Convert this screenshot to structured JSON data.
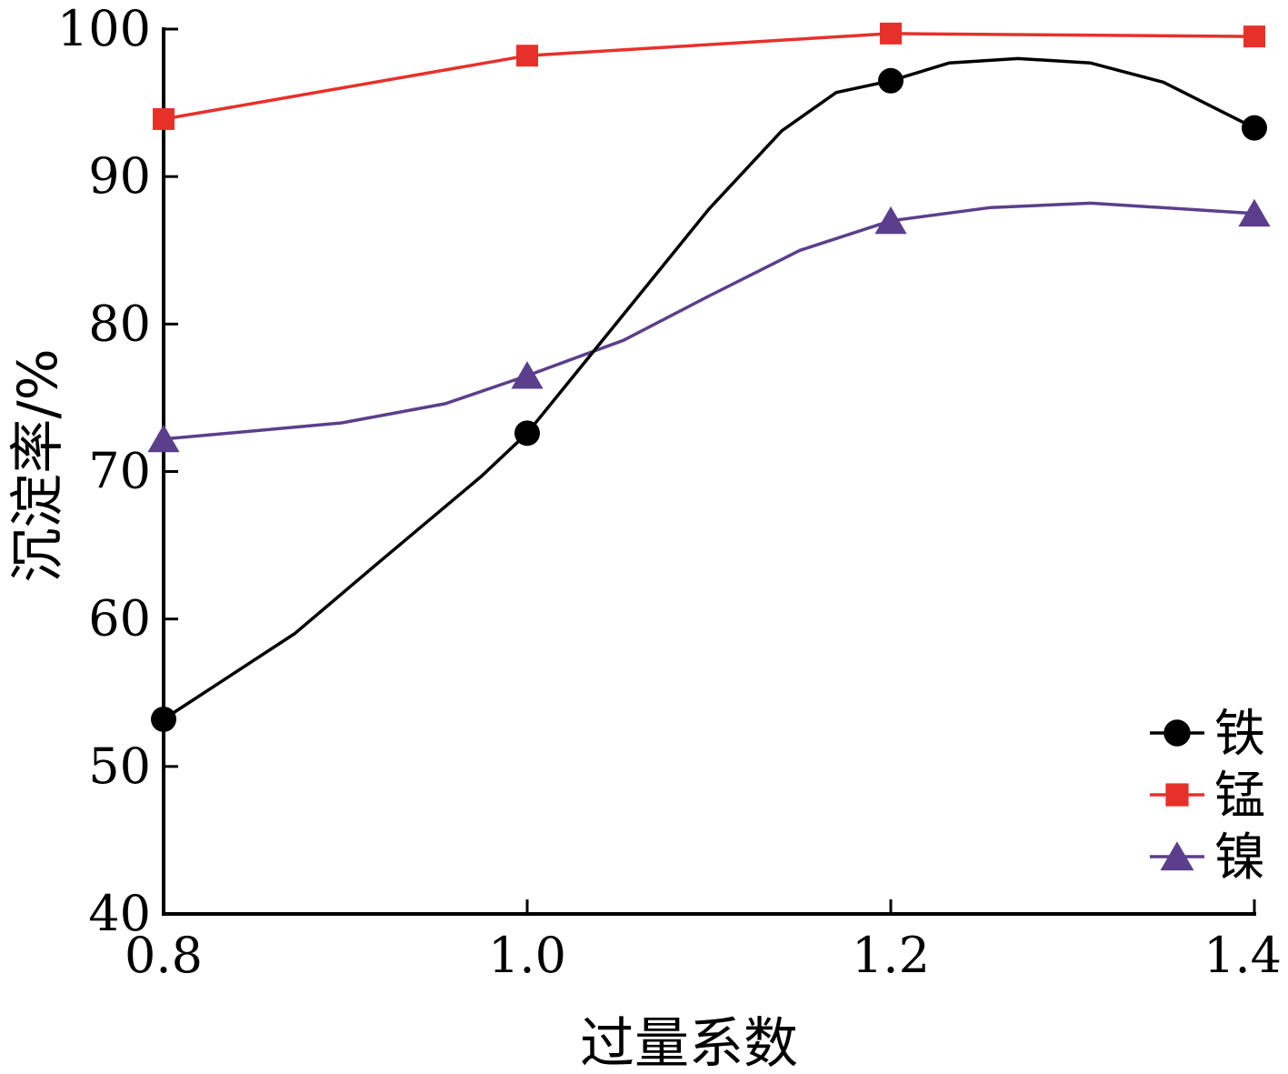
{
  "chart_data": {
    "type": "line",
    "xlabel": "过量系数",
    "ylabel": "沉淀率/%",
    "x": [
      0.8,
      1.0,
      1.2,
      1.4
    ],
    "x_ticks": [
      "0.8",
      "1.0",
      "1.2",
      "1.4"
    ],
    "y_ticks": [
      "40",
      "50",
      "60",
      "70",
      "80",
      "90",
      "100"
    ],
    "xlim": [
      0.8,
      1.4
    ],
    "ylim": [
      40,
      100
    ],
    "grid": false,
    "legend_position": "bottom-right",
    "series": [
      {
        "name": "铁",
        "marker": "circle",
        "color": "#000000",
        "values": [
          53.2,
          72.6,
          96.5,
          93.3
        ],
        "curve": [
          [
            0.8,
            53.2
          ],
          [
            0.872,
            59.0
          ],
          [
            0.917,
            63.7
          ],
          [
            0.975,
            69.7
          ],
          [
            1.0,
            72.6
          ],
          [
            1.05,
            80.2
          ],
          [
            1.1,
            87.8
          ],
          [
            1.14,
            93.1
          ],
          [
            1.17,
            95.7
          ],
          [
            1.2,
            96.5
          ],
          [
            1.232,
            97.7
          ],
          [
            1.27,
            98.0
          ],
          [
            1.31,
            97.7
          ],
          [
            1.35,
            96.4
          ],
          [
            1.4,
            93.3
          ]
        ]
      },
      {
        "name": "锰",
        "marker": "square",
        "color": "#e8302a",
        "values": [
          93.9,
          98.2,
          99.7,
          99.5
        ]
      },
      {
        "name": "镍",
        "marker": "triangle",
        "color": "#5b3f8c",
        "values": [
          72.2,
          76.5,
          87.0,
          87.5
        ],
        "curve": [
          [
            0.8,
            72.2
          ],
          [
            0.898,
            73.3
          ],
          [
            0.955,
            74.6
          ],
          [
            1.0,
            76.5
          ],
          [
            1.053,
            78.9
          ],
          [
            1.1,
            81.9
          ],
          [
            1.15,
            85.0
          ],
          [
            1.2,
            87.0
          ],
          [
            1.255,
            87.9
          ],
          [
            1.31,
            88.2
          ],
          [
            1.4,
            87.5
          ]
        ]
      }
    ]
  }
}
